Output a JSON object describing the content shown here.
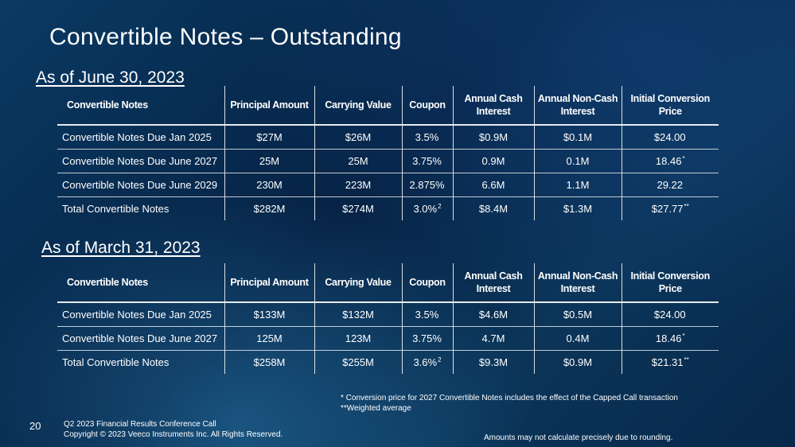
{
  "slide": {
    "title": "Convertible Notes – Outstanding",
    "page_number": "20",
    "footer_line1": "Q2 2023 Financial Results Conference Call",
    "footer_line2": "Copyright © 2023 Veeco Instruments Inc. All Rights Reserved.",
    "note1": "*  Conversion price for 2027 Convertible Notes includes the effect of the Capped Call transaction",
    "note2": "**Weighted average",
    "rounding_note": "Amounts may not calculate precisely due to rounding."
  },
  "headers": {
    "name": "Convertible Notes",
    "principal": "Principal Amount",
    "carrying": "Carrying Value",
    "coupon": "Coupon",
    "cash_l1": "Annual Cash",
    "cash_l2": "Interest",
    "noncash_l1": "Annual Non-Cash",
    "noncash_l2": "Interest",
    "conv_l1": "Initial Conversion",
    "conv_l2": "Price"
  },
  "june": {
    "heading": "As of June 30, 2023",
    "rows": [
      {
        "name": "Convertible Notes Due Jan 2025",
        "principal": "$27M",
        "carrying": "$26M",
        "coupon": "3.5%",
        "coupon_sup": "",
        "cash": "$0.9M",
        "noncash": "$0.1M",
        "price": "$24.00",
        "price_sup": ""
      },
      {
        "name": "Convertible Notes Due June 2027",
        "principal": "25M",
        "carrying": "25M",
        "coupon": "3.75%",
        "coupon_sup": "",
        "cash": "0.9M",
        "noncash": "0.1M",
        "price": "18.46",
        "price_sup": "*"
      },
      {
        "name": "Convertible Notes Due June 2029",
        "principal": "230M",
        "carrying": "223M",
        "coupon": "2.875%",
        "coupon_sup": "",
        "cash": "6.6M",
        "noncash": "1.1M",
        "price": "29.22",
        "price_sup": ""
      },
      {
        "name": "Total Convertible Notes",
        "principal": "$282M",
        "carrying": "$274M",
        "coupon": "3.0%",
        "coupon_sup": "2",
        "cash": "$8.4M",
        "noncash": "$1.3M",
        "price": "$27.77",
        "price_sup": "**"
      }
    ]
  },
  "march": {
    "heading": "As of March 31, 2023",
    "rows": [
      {
        "name": "Convertible Notes Due Jan 2025",
        "principal": "$133M",
        "carrying": "$132M",
        "coupon": "3.5%",
        "coupon_sup": "",
        "cash": "$4.6M",
        "noncash": "$0.5M",
        "price": "$24.00",
        "price_sup": ""
      },
      {
        "name": "Convertible Notes Due June 2027",
        "principal": "125M",
        "carrying": "123M",
        "coupon": "3.75%",
        "coupon_sup": "",
        "cash": "4.7M",
        "noncash": "0.4M",
        "price": "18.46",
        "price_sup": "*"
      },
      {
        "name": "Total Convertible Notes",
        "principal": "$258M",
        "carrying": "$255M",
        "coupon": "3.6%",
        "coupon_sup": "2",
        "cash": "$9.3M",
        "noncash": "$0.9M",
        "price": "$21.31",
        "price_sup": "**"
      }
    ]
  }
}
